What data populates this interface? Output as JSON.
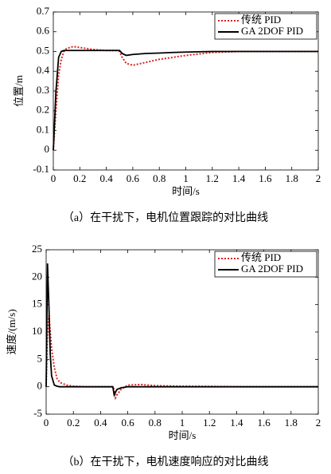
{
  "chart_data": [
    {
      "type": "line",
      "caption": "（a）在干扰下，电机位置跟踪的对比曲线",
      "xlabel": "时间/s",
      "ylabel": "位置/m",
      "x": [
        0,
        0.02,
        0.04,
        0.06,
        0.08,
        0.1,
        0.15,
        0.2,
        0.3,
        0.4,
        0.48,
        0.5,
        0.52,
        0.55,
        0.6,
        0.7,
        0.8,
        0.9,
        1.0,
        1.2,
        1.4,
        1.6,
        1.8,
        2.0
      ],
      "series": [
        {
          "name": "传统 PID",
          "color": "#e02020",
          "dash": true,
          "values": [
            0,
            0.2,
            0.38,
            0.46,
            0.5,
            0.515,
            0.525,
            0.52,
            0.51,
            0.505,
            0.505,
            0.5,
            0.47,
            0.44,
            0.43,
            0.445,
            0.46,
            0.47,
            0.48,
            0.495,
            0.5,
            0.5,
            0.5,
            0.5
          ]
        },
        {
          "name": "GA 2DOF PID",
          "color": "#000000",
          "dash": false,
          "values": [
            0,
            0.3,
            0.47,
            0.5,
            0.505,
            0.505,
            0.505,
            0.505,
            0.505,
            0.505,
            0.505,
            0.505,
            0.49,
            0.48,
            0.485,
            0.49,
            0.492,
            0.495,
            0.497,
            0.5,
            0.5,
            0.5,
            0.5,
            0.5
          ]
        }
      ],
      "xlim": [
        0,
        2
      ],
      "xticks": [
        0,
        0.2,
        0.4,
        0.6,
        0.8,
        1,
        1.2,
        1.4,
        1.6,
        1.8,
        2
      ],
      "ylim": [
        -0.1,
        0.7
      ],
      "yticks": [
        -0.1,
        0,
        0.1,
        0.2,
        0.3,
        0.4,
        0.5,
        0.6,
        0.7
      ],
      "legend": "upper right"
    },
    {
      "type": "line",
      "caption": "（b）在干扰下，电机速度响应的对比曲线",
      "xlabel": "时间/s",
      "ylabel": "速度/(m/s)",
      "x": [
        0,
        0.01,
        0.02,
        0.03,
        0.04,
        0.06,
        0.08,
        0.1,
        0.15,
        0.2,
        0.3,
        0.4,
        0.49,
        0.5,
        0.51,
        0.52,
        0.55,
        0.6,
        0.7,
        0.8,
        1,
        1.5,
        2
      ],
      "series": [
        {
          "name": "传统 PID",
          "color": "#e02020",
          "dash": true,
          "values": [
            0,
            10,
            13,
            10,
            7,
            3.5,
            1.5,
            0.8,
            0.3,
            0.1,
            0,
            0,
            0,
            -0.5,
            -2,
            -1.5,
            -0.5,
            0.3,
            0.4,
            0.2,
            0.1,
            0,
            0
          ]
        },
        {
          "name": "GA 2DOF PID",
          "color": "#000000",
          "dash": false,
          "values": [
            0,
            22.5,
            15,
            6,
            2,
            0.3,
            0.1,
            0,
            0,
            0,
            0,
            0,
            0,
            -1.5,
            -1,
            -0.5,
            -0.2,
            0,
            0,
            0,
            0,
            0,
            0
          ]
        }
      ],
      "xlim": [
        0,
        2
      ],
      "xticks": [
        0,
        0.2,
        0.4,
        0.6,
        0.8,
        1,
        1.2,
        1.4,
        1.6,
        1.8,
        2
      ],
      "ylim": [
        -5,
        25
      ],
      "yticks": [
        -5,
        0,
        5,
        10,
        15,
        20,
        25
      ],
      "legend": "upper right"
    }
  ]
}
